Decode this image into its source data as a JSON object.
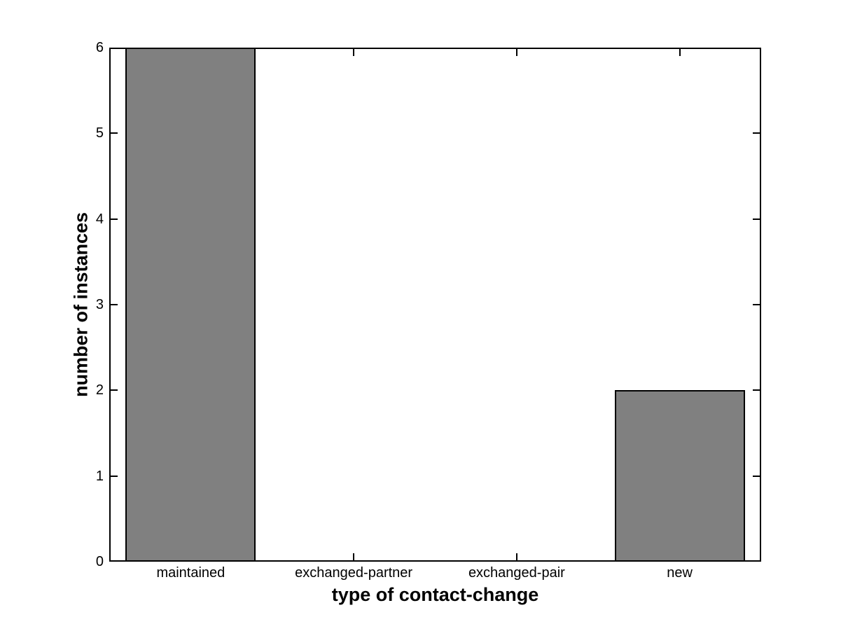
{
  "figure": {
    "background_color": "#ffffff"
  },
  "chart_data": {
    "type": "bar",
    "categories": [
      "maintained",
      "exchanged-partner",
      "exchanged-pair",
      "new"
    ],
    "values": [
      6,
      0,
      0,
      2
    ],
    "title": "",
    "xlabel": "type of contact-change",
    "ylabel": "number of instances",
    "ylim": [
      0,
      6
    ],
    "yticks": [
      0,
      1,
      2,
      3,
      4,
      5,
      6
    ],
    "bar_color": "#808080",
    "bar_edge_color": "#000000",
    "axis_color": "#000000",
    "bar_width_fraction": 0.8,
    "grid": false,
    "legend": null,
    "tick_direction": "in",
    "box": true
  }
}
